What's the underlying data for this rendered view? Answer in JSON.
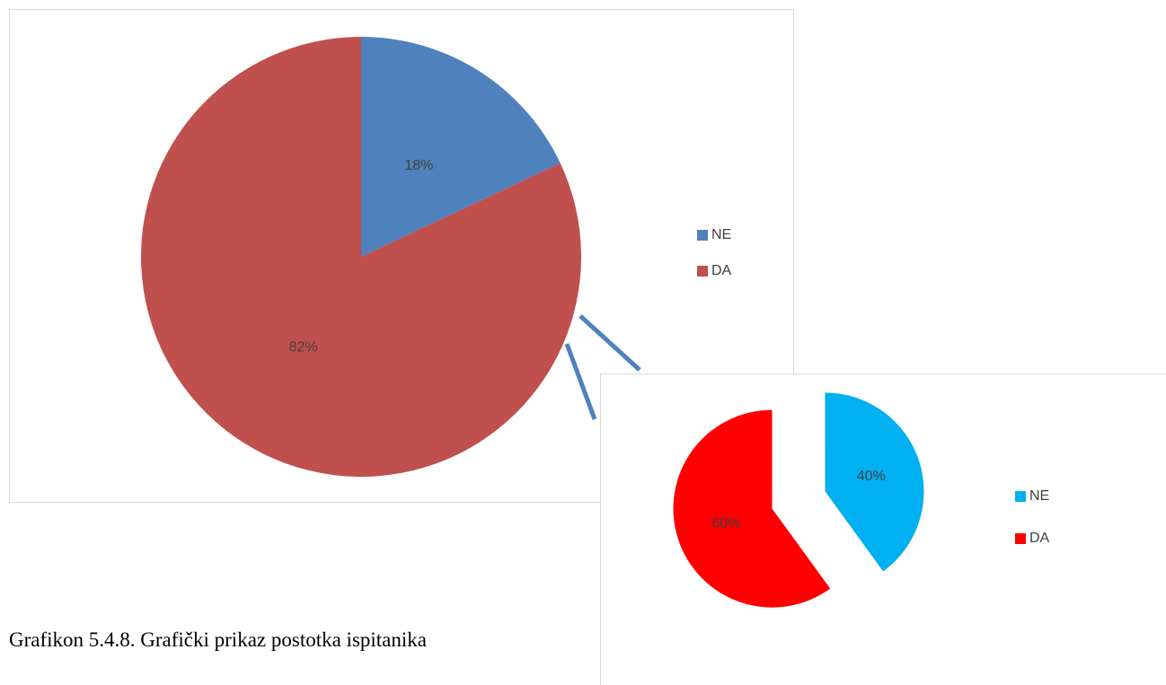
{
  "charts": [
    {
      "type": "pie",
      "categories": [
        "NE",
        "DA"
      ],
      "values": [
        18,
        82
      ],
      "value_labels": [
        "18%",
        "82%"
      ],
      "colors": [
        "#4f81bd",
        "#c0504d"
      ],
      "legend": "right"
    },
    {
      "type": "pie",
      "categories": [
        "NE",
        "DA"
      ],
      "values": [
        40,
        60
      ],
      "value_labels": [
        "40%",
        "60%"
      ],
      "colors": [
        "#00b0f0",
        "#ff0000"
      ],
      "legend": "right"
    }
  ],
  "caption": "Grafikon 5.4.8. Grafički prikaz postotka ispitanika"
}
